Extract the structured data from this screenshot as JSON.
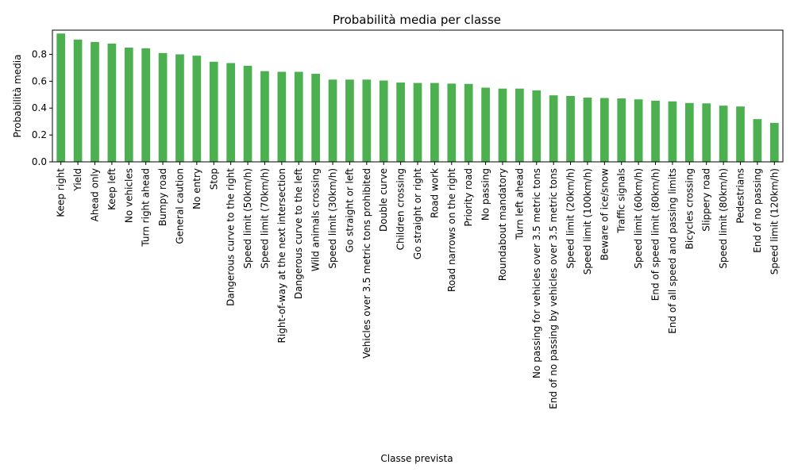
{
  "chart_data": {
    "type": "bar",
    "title": "Probabilità media per classe",
    "xlabel": "Classe prevista",
    "ylabel": "Probabilità media",
    "ylim": [
      0.0,
      0.98
    ],
    "yticks": [
      "0.0",
      "0.2",
      "0.4",
      "0.6",
      "0.8"
    ],
    "yticks_values": [
      0.0,
      0.2,
      0.4,
      0.6,
      0.8
    ],
    "grid": false,
    "legend": "none",
    "bar_color": "#4caf50",
    "categories": [
      "Keep right",
      "Yield",
      "Ahead only",
      "Keep left",
      "No vehicles",
      "Turn right ahead",
      "Bumpy road",
      "General caution",
      "No entry",
      "Stop",
      "Dangerous curve to the right",
      "Speed limit (50km/h)",
      "Speed limit (70km/h)",
      "Right-of-way at the next intersection",
      "Dangerous curve to the left",
      "Wild animals crossing",
      "Speed limit (30km/h)",
      "Go straight or left",
      "Vehicles over 3.5 metric tons prohibited",
      "Double curve",
      "Children crossing",
      "Go straight or right",
      "Road work",
      "Road narrows on the right",
      "Priority road",
      "No passing",
      "Roundabout mandatory",
      "Turn left ahead",
      "No passing for vehicles over 3.5 metric tons",
      "End of no passing by vehicles over 3.5 metric tons",
      "Speed limit (20km/h)",
      "Speed limit (100km/h)",
      "Beware of ice/snow",
      "Traffic signals",
      "Speed limit (60km/h)",
      "End of speed limit (80km/h)",
      "End of all speed and passing limits",
      "Bicycles crossing",
      "Slippery road",
      "Speed limit (80km/h)",
      "Pedestrians",
      "End of no passing",
      "Speed limit (120km/h)"
    ],
    "values": [
      0.955,
      0.91,
      0.892,
      0.88,
      0.85,
      0.845,
      0.81,
      0.8,
      0.79,
      0.745,
      0.735,
      0.715,
      0.675,
      0.67,
      0.67,
      0.655,
      0.612,
      0.612,
      0.612,
      0.605,
      0.59,
      0.587,
      0.587,
      0.582,
      0.58,
      0.552,
      0.545,
      0.545,
      0.532,
      0.495,
      0.49,
      0.478,
      0.475,
      0.472,
      0.465,
      0.455,
      0.45,
      0.438,
      0.435,
      0.418,
      0.412,
      0.318,
      0.29
    ]
  }
}
